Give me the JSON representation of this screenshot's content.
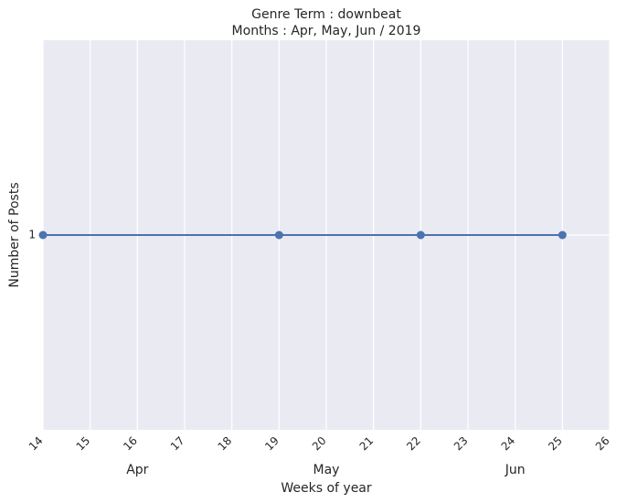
{
  "chart_data": {
    "type": "line",
    "title": "Genre Term : downbeat",
    "subtitle": "Months : Apr, May, Jun / 2019",
    "xlabel": "Weeks of year",
    "ylabel": "Number of Posts",
    "x_ticks": [
      "14",
      "15",
      "16",
      "17",
      "18",
      "19",
      "20",
      "21",
      "22",
      "23",
      "24",
      "25",
      "26"
    ],
    "y_ticks": [
      "1"
    ],
    "xlim": [
      14,
      26
    ],
    "ylim": [
      0.95,
      1.05
    ],
    "month_labels": [
      {
        "label": "Apr",
        "week": 16
      },
      {
        "label": "May",
        "week": 20
      },
      {
        "label": "Jun",
        "week": 24
      }
    ],
    "grid": true,
    "series": [
      {
        "x": [
          14,
          19,
          22,
          25
        ],
        "y": [
          1,
          1,
          1,
          1
        ],
        "color": "#4c72b0"
      }
    ],
    "colors": {
      "plot_bg": "#eaeaf2",
      "grid": "#ffffff",
      "line": "#4c72b0"
    }
  }
}
